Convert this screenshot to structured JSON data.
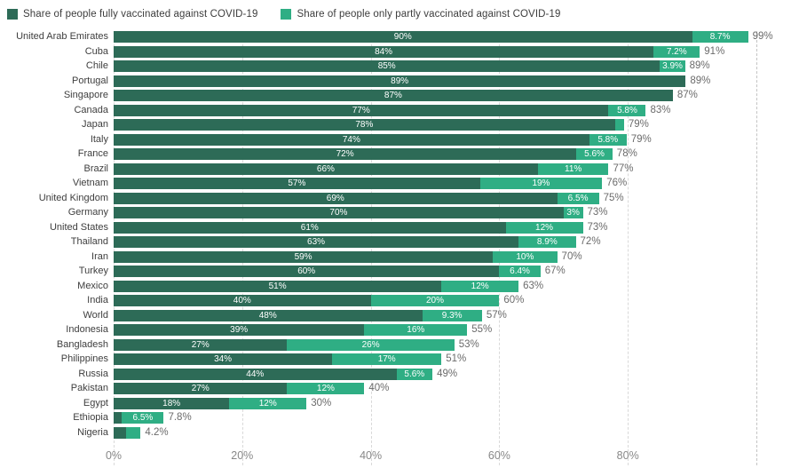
{
  "legend": {
    "items": [
      {
        "label": "Share of people fully vaccinated against COVID-19",
        "color": "#2d6b57"
      },
      {
        "label": "Share of people only partly vaccinated against COVID-19",
        "color": "#2fae84"
      }
    ]
  },
  "chart_data": {
    "type": "bar",
    "orientation": "horizontal",
    "stacked": true,
    "title": "",
    "xlabel": "",
    "ylabel": "",
    "xlim": [
      0,
      107
    ],
    "grid": "dashed-vertical",
    "legend_position": "top",
    "colors": {
      "fully": "#2d6b57",
      "partly": "#2fae84"
    },
    "series_names": [
      "Share of people fully vaccinated against COVID-19",
      "Share of people only partly vaccinated against COVID-19"
    ],
    "x_ticks": [
      {
        "value": 0,
        "label": "0%"
      },
      {
        "value": 20,
        "label": "20%"
      },
      {
        "value": 40,
        "label": "40%"
      },
      {
        "value": 60,
        "label": "60%"
      },
      {
        "value": 80,
        "label": "80%"
      }
    ],
    "gridline_values": [
      0,
      20,
      40,
      60,
      80,
      100
    ],
    "rows": [
      {
        "name": "United Arab Emirates",
        "fully": 90,
        "partly": 8.7,
        "fully_label": "90%",
        "partly_label": "8.7%",
        "total": 99,
        "total_label": "99%"
      },
      {
        "name": "Cuba",
        "fully": 84,
        "partly": 7.2,
        "fully_label": "84%",
        "partly_label": "7.2%",
        "total": 91,
        "total_label": "91%"
      },
      {
        "name": "Chile",
        "fully": 85,
        "partly": 3.9,
        "fully_label": "85%",
        "partly_label": "3.9%",
        "total": 89,
        "total_label": "89%"
      },
      {
        "name": "Portugal",
        "fully": 89,
        "partly": 0,
        "fully_label": "89%",
        "partly_label": "",
        "total": 89,
        "total_label": "89%"
      },
      {
        "name": "Singapore",
        "fully": 87,
        "partly": 0,
        "fully_label": "87%",
        "partly_label": "",
        "total": 87,
        "total_label": "87%"
      },
      {
        "name": "Canada",
        "fully": 77,
        "partly": 5.8,
        "fully_label": "77%",
        "partly_label": "5.8%",
        "total": 83,
        "total_label": "83%"
      },
      {
        "name": "Japan",
        "fully": 78,
        "partly": 1.4,
        "fully_label": "78%",
        "partly_label": "",
        "total": 79,
        "total_label": "79%"
      },
      {
        "name": "Italy",
        "fully": 74,
        "partly": 5.8,
        "fully_label": "74%",
        "partly_label": "5.8%",
        "total": 79,
        "total_label": "79%"
      },
      {
        "name": "France",
        "fully": 72,
        "partly": 5.6,
        "fully_label": "72%",
        "partly_label": "5.6%",
        "total": 78,
        "total_label": "78%"
      },
      {
        "name": "Brazil",
        "fully": 66,
        "partly": 11,
        "fully_label": "66%",
        "partly_label": "11%",
        "total": 77,
        "total_label": "77%"
      },
      {
        "name": "Vietnam",
        "fully": 57,
        "partly": 19,
        "fully_label": "57%",
        "partly_label": "19%",
        "total": 76,
        "total_label": "76%"
      },
      {
        "name": "United Kingdom",
        "fully": 69,
        "partly": 6.5,
        "fully_label": "69%",
        "partly_label": "6.5%",
        "total": 75,
        "total_label": "75%"
      },
      {
        "name": "Germany",
        "fully": 70,
        "partly": 3,
        "fully_label": "70%",
        "partly_label": "3%",
        "total": 73,
        "total_label": "73%"
      },
      {
        "name": "United States",
        "fully": 61,
        "partly": 12,
        "fully_label": "61%",
        "partly_label": "12%",
        "total": 73,
        "total_label": "73%"
      },
      {
        "name": "Thailand",
        "fully": 63,
        "partly": 8.9,
        "fully_label": "63%",
        "partly_label": "8.9%",
        "total": 72,
        "total_label": "72%"
      },
      {
        "name": "Iran",
        "fully": 59,
        "partly": 10,
        "fully_label": "59%",
        "partly_label": "10%",
        "total": 70,
        "total_label": "70%"
      },
      {
        "name": "Turkey",
        "fully": 60,
        "partly": 6.4,
        "fully_label": "60%",
        "partly_label": "6.4%",
        "total": 67,
        "total_label": "67%"
      },
      {
        "name": "Mexico",
        "fully": 51,
        "partly": 12,
        "fully_label": "51%",
        "partly_label": "12%",
        "total": 63,
        "total_label": "63%"
      },
      {
        "name": "India",
        "fully": 40,
        "partly": 20,
        "fully_label": "40%",
        "partly_label": "20%",
        "total": 60,
        "total_label": "60%"
      },
      {
        "name": "World",
        "fully": 48,
        "partly": 9.3,
        "fully_label": "48%",
        "partly_label": "9.3%",
        "total": 57,
        "total_label": "57%"
      },
      {
        "name": "Indonesia",
        "fully": 39,
        "partly": 16,
        "fully_label": "39%",
        "partly_label": "16%",
        "total": 55,
        "total_label": "55%"
      },
      {
        "name": "Bangladesh",
        "fully": 27,
        "partly": 26,
        "fully_label": "27%",
        "partly_label": "26%",
        "total": 53,
        "total_label": "53%"
      },
      {
        "name": "Philippines",
        "fully": 34,
        "partly": 17,
        "fully_label": "34%",
        "partly_label": "17%",
        "total": 51,
        "total_label": "51%"
      },
      {
        "name": "Russia",
        "fully": 44,
        "partly": 5.6,
        "fully_label": "44%",
        "partly_label": "5.6%",
        "total": 49,
        "total_label": "49%"
      },
      {
        "name": "Pakistan",
        "fully": 27,
        "partly": 12,
        "fully_label": "27%",
        "partly_label": "12%",
        "total": 40,
        "total_label": "40%"
      },
      {
        "name": "Egypt",
        "fully": 18,
        "partly": 12,
        "fully_label": "18%",
        "partly_label": "12%",
        "total": 30,
        "total_label": "30%"
      },
      {
        "name": "Ethiopia",
        "fully": 1.3,
        "partly": 6.5,
        "fully_label": "",
        "partly_label": "6.5%",
        "total": 7.8,
        "total_label": "7.8%"
      },
      {
        "name": "Nigeria",
        "fully": 2.0,
        "partly": 2.2,
        "fully_label": "",
        "partly_label": "",
        "total": 4.2,
        "total_label": "4.2%"
      }
    ]
  }
}
